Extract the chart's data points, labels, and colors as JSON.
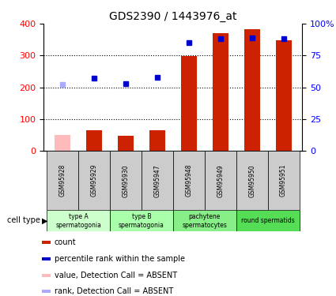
{
  "title": "GDS2390 / 1443976_at",
  "samples": [
    "GSM95928",
    "GSM95929",
    "GSM95930",
    "GSM95947",
    "GSM95948",
    "GSM95949",
    "GSM95950",
    "GSM95951"
  ],
  "counts": [
    50,
    65,
    47,
    65,
    298,
    370,
    382,
    348
  ],
  "ranks_pct": [
    52,
    57,
    53,
    58,
    85,
    88,
    89,
    88
  ],
  "absent_mask": [
    true,
    false,
    false,
    false,
    false,
    false,
    false,
    false
  ],
  "rank_absent_mask": [
    true,
    false,
    false,
    false,
    false,
    false,
    false,
    false
  ],
  "cell_groups": [
    {
      "label": "type A",
      "sublabel": "spermatogonia",
      "samples": [
        "GSM95928",
        "GSM95929"
      ],
      "color": "#ccffcc"
    },
    {
      "label": "type B",
      "sublabel": "spermatogonia",
      "samples": [
        "GSM95930",
        "GSM95947"
      ],
      "color": "#aaffaa"
    },
    {
      "label": "pachytene",
      "sublabel": "spermatocytes",
      "samples": [
        "GSM95948",
        "GSM95949"
      ],
      "color": "#88ee88"
    },
    {
      "label": "round spermatids",
      "sublabel": "",
      "samples": [
        "GSM95950",
        "GSM95951"
      ],
      "color": "#55dd55"
    }
  ],
  "bar_color_present": "#cc2200",
  "bar_color_absent": "#ffbbbb",
  "rank_color_present": "#0000cc",
  "rank_color_absent": "#aaaaff",
  "ylim_left": [
    0,
    400
  ],
  "ylim_right": [
    0,
    100
  ],
  "yticks_left": [
    0,
    100,
    200,
    300,
    400
  ],
  "yticks_right": [
    0,
    25,
    50,
    75,
    100
  ],
  "legend_items": [
    {
      "label": "count",
      "color": "#cc2200"
    },
    {
      "label": "percentile rank within the sample",
      "color": "#0000cc"
    },
    {
      "label": "value, Detection Call = ABSENT",
      "color": "#ffbbbb"
    },
    {
      "label": "rank, Detection Call = ABSENT",
      "color": "#aaaaff"
    }
  ],
  "cell_type_label": "cell type",
  "bg_color": "#ffffff",
  "bar_width": 0.5,
  "marker_size": 5
}
